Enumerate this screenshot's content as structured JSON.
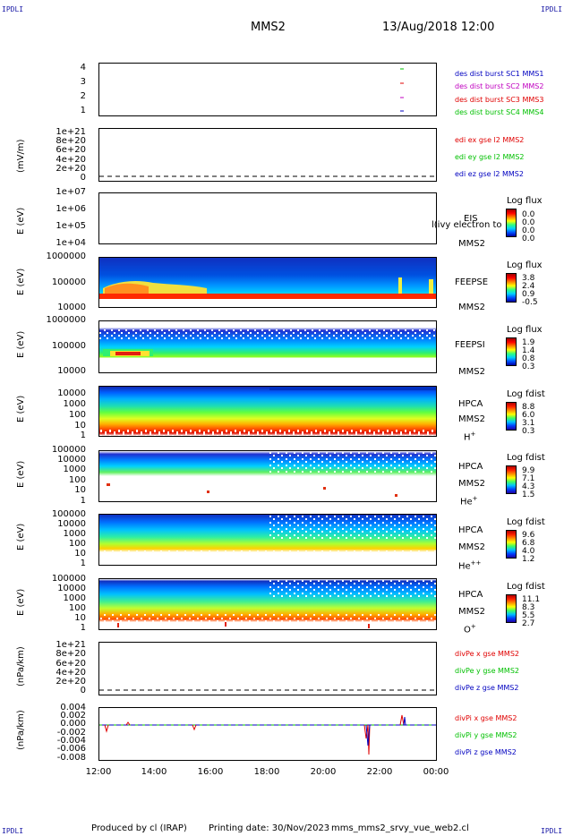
{
  "header": {
    "corner_label": "IPDLI",
    "title": "MMS2",
    "datetime": "13/Aug/2018 12:00"
  },
  "footer": {
    "produced_by": "Produced by cl (IRAP)",
    "printing_date": "Printing date: 30/Nov/2023",
    "script_name": "mms_mms2_srvy_vue_web2.cl"
  },
  "x_axis": {
    "ticks": [
      "12:00",
      "14:00",
      "16:00",
      "18:00",
      "20:00",
      "22:00",
      "00:00"
    ]
  },
  "colors": {
    "blue": "#0000c0",
    "magenta": "#c000c0",
    "red": "#e00000",
    "green": "#00c000",
    "corner": "#1a1aa6"
  },
  "chart_data": [
    {
      "type": "scatter",
      "panel": "burst",
      "yticks": [
        "4",
        "3",
        "2",
        "1"
      ],
      "legend": [
        {
          "label": "des dist burst SC1 MMS1",
          "color": "#0000c0"
        },
        {
          "label": "des dist burst SC2 MMS2",
          "color": "#c000c0"
        },
        {
          "label": "des dist burst SC3 MMS3",
          "color": "#e00000"
        },
        {
          "label": "des dist burst SC4 MMS4",
          "color": "#00c000"
        }
      ],
      "series": [
        {
          "name": "des dist burst SC1 MMS1",
          "x": [
            "22:45"
          ],
          "y": [
            1
          ]
        },
        {
          "name": "des dist burst SC2 MMS2",
          "x": [
            "22:45"
          ],
          "y": [
            2
          ]
        },
        {
          "name": "des dist burst SC3 MMS3",
          "x": [
            "22:45"
          ],
          "y": [
            3
          ]
        },
        {
          "name": "des dist burst SC4 MMS4",
          "x": [
            "22:45"
          ],
          "y": [
            4
          ]
        }
      ]
    },
    {
      "type": "line",
      "panel": "edi",
      "ylabel": "(mV/m)",
      "yticks": [
        "1e+21",
        "8e+20",
        "6e+20",
        "4e+20",
        "2e+20",
        "0"
      ],
      "legend": [
        {
          "label": "edi ex gse l2 MMS2",
          "color": "#e00000"
        },
        {
          "label": "edi ey gse l2 MMS2",
          "color": "#00c000"
        },
        {
          "label": "edi ez gse l2 MMS2",
          "color": "#0000c0"
        }
      ]
    },
    {
      "type": "heatmap",
      "panel": "eis",
      "ylabel": "E (eV)",
      "yticks": [
        "1e+07",
        "1e+06",
        "1e+05",
        "1e+04"
      ],
      "right_labels": [
        "EIS",
        "MMS2"
      ],
      "overlay_text": "l(ivy electron to",
      "colorbar": {
        "title": "Log flux",
        "ticks": [
          "0.0",
          "0.0",
          "0.0",
          "0.0"
        ]
      }
    },
    {
      "type": "heatmap",
      "panel": "feepse",
      "ylabel": "E (eV)",
      "yticks": [
        "1000000",
        "100000",
        "10000"
      ],
      "right_labels": [
        "FEEPSE",
        "MMS2"
      ],
      "colorbar": {
        "title": "Log flux",
        "ticks": [
          "3.8",
          "2.4",
          "0.9",
          "-0.5"
        ]
      }
    },
    {
      "type": "heatmap",
      "panel": "feepsi",
      "ylabel": "E (eV)",
      "yticks": [
        "1000000",
        "100000",
        "10000"
      ],
      "right_labels": [
        "FEEPSI",
        "MMS2"
      ],
      "colorbar": {
        "title": "Log flux",
        "ticks": [
          "1.9",
          "1.4",
          "0.8",
          "0.3"
        ]
      }
    },
    {
      "type": "heatmap",
      "panel": "hpca_h",
      "ylabel": "E (eV)",
      "yticks": [
        "10000",
        "1000",
        "100",
        "10",
        "1"
      ],
      "right_labels": [
        "HPCA",
        "MMS2",
        "H"
      ],
      "species_sup": "+",
      "colorbar": {
        "title": "Log fdist",
        "ticks": [
          "8.8",
          "6.0",
          "3.1",
          "0.3"
        ]
      }
    },
    {
      "type": "heatmap",
      "panel": "hpca_he",
      "ylabel": "E (eV)",
      "yticks": [
        "100000",
        "10000",
        "1000",
        "100",
        "10",
        "1"
      ],
      "right_labels": [
        "HPCA",
        "MMS2",
        "He"
      ],
      "species_sup": "+",
      "colorbar": {
        "title": "Log fdist",
        "ticks": [
          "9.9",
          "7.1",
          "4.3",
          "1.5"
        ]
      }
    },
    {
      "type": "heatmap",
      "panel": "hpca_hepp",
      "ylabel": "E (eV)",
      "yticks": [
        "100000",
        "10000",
        "1000",
        "100",
        "10",
        "1"
      ],
      "right_labels": [
        "HPCA",
        "MMS2",
        "He"
      ],
      "species_sup": "++",
      "colorbar": {
        "title": "Log fdist",
        "ticks": [
          "9.6",
          "6.8",
          "4.0",
          "1.2"
        ]
      }
    },
    {
      "type": "heatmap",
      "panel": "hpca_o",
      "ylabel": "E (eV)",
      "yticks": [
        "100000",
        "10000",
        "1000",
        "100",
        "10",
        "1"
      ],
      "right_labels": [
        "HPCA",
        "MMS2",
        "O"
      ],
      "species_sup": "+",
      "colorbar": {
        "title": "Log fdist",
        "ticks": [
          "11.1",
          "8.3",
          "5.5",
          "2.7"
        ]
      }
    },
    {
      "type": "line",
      "panel": "divpe",
      "ylabel": "(nPa/km)",
      "yticks": [
        "1e+21",
        "8e+20",
        "6e+20",
        "4e+20",
        "2e+20",
        "0"
      ],
      "legend": [
        {
          "label": "divPe x gse MMS2",
          "color": "#e00000"
        },
        {
          "label": "divPe y gse MMS2",
          "color": "#00c000"
        },
        {
          "label": "divPe z gse MMS2",
          "color": "#0000c0"
        }
      ]
    },
    {
      "type": "line",
      "panel": "divpi",
      "ylabel": "(nPa/km)",
      "yticks": [
        "0.004",
        "0.002",
        "0.000",
        "-0.002",
        "-0.004",
        "-0.006",
        "-0.008"
      ],
      "ylim": [
        -0.008,
        0.004
      ],
      "legend": [
        {
          "label": "divPi x gse MMS2",
          "color": "#e00000"
        },
        {
          "label": "divPi y gse MMS2",
          "color": "#00c000"
        },
        {
          "label": "divPi z gse MMS2",
          "color": "#0000c0"
        }
      ]
    }
  ]
}
